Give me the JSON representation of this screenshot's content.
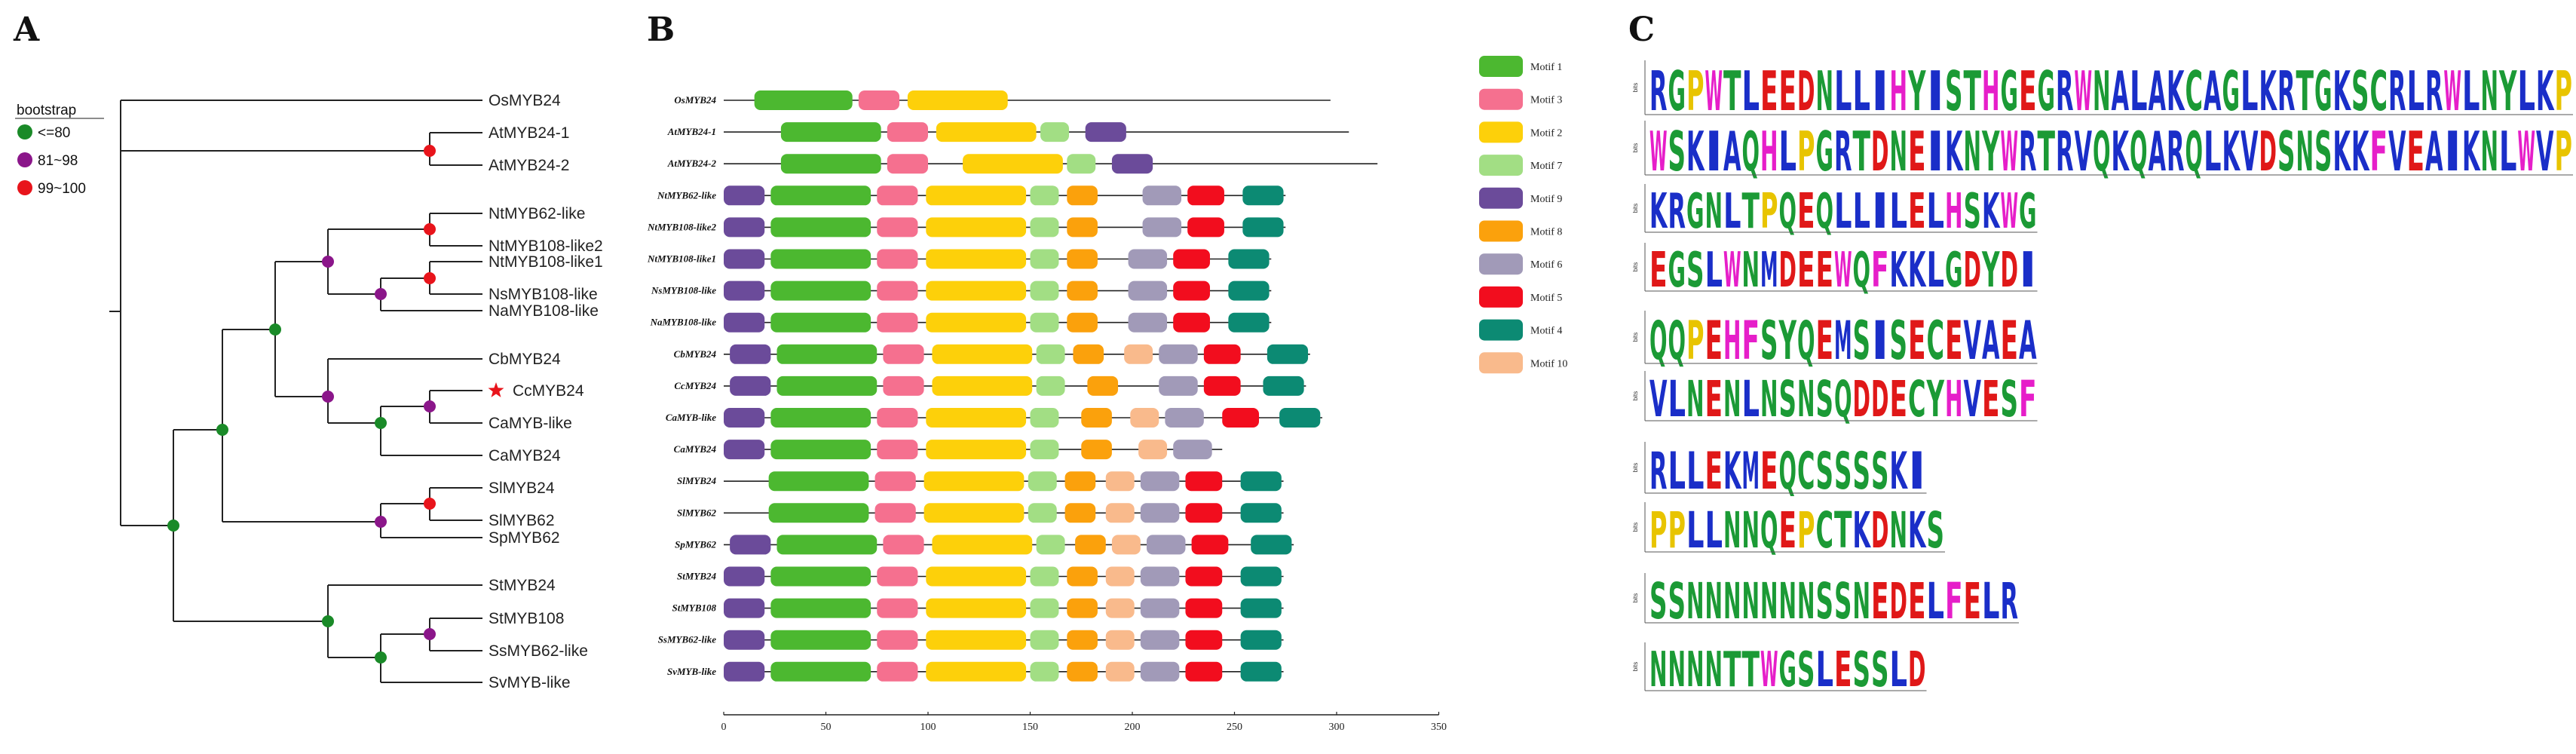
{
  "panels": {
    "a": "A",
    "b": "B",
    "c": "C"
  },
  "legend": {
    "title": "bootstrap",
    "items": [
      {
        "label": "<=80",
        "color": "#1a8a28"
      },
      {
        "label": "81~98",
        "color": "#8b168a"
      },
      {
        "label": "99~100",
        "color": "#e8141b"
      }
    ]
  },
  "tree": {
    "leaves": [
      "OsMYB24",
      "AtMYB24-1",
      "AtMYB24-2",
      "NtMYB62-like",
      "NtMYB108-like2",
      "NtMYB108-like1",
      "NsMYB108-like",
      "NaMYB108-like",
      "CbMYB24",
      "CcMYB24",
      "CaMYB-like",
      "CaMYB24",
      "SlMYB24",
      "SlMYB62",
      "SpMYB62",
      "StMYB24",
      "StMYB108",
      "SsMYB62-like",
      "SvMYB-like"
    ],
    "highlight": "CcMYB24",
    "highlight_color": "#e8141b",
    "star_color": "#e8141b"
  },
  "motif_legend": [
    {
      "label": "Motif 1",
      "color": "#4cb830"
    },
    {
      "label": "Motif 3",
      "color": "#f5708f"
    },
    {
      "label": "Motif 2",
      "color": "#fdd00a"
    },
    {
      "label": "Motif 7",
      "color": "#a2de84"
    },
    {
      "label": "Motif 9",
      "color": "#6b4b9a"
    },
    {
      "label": "Motif 8",
      "color": "#fba10c"
    },
    {
      "label": "Motif 6",
      "color": "#a19ab8"
    },
    {
      "label": "Motif 5",
      "color": "#f20d1e"
    },
    {
      "label": "Motif 4",
      "color": "#0c8a73"
    },
    {
      "label": "Motif 10",
      "color": "#f9ba8c"
    }
  ],
  "axis": {
    "min": 0,
    "max": 350,
    "ticks": [
      0,
      50,
      100,
      150,
      200,
      250,
      300,
      350
    ]
  },
  "genes": [
    {
      "name": "OsMYB24",
      "len": 297,
      "m": [
        [
          1,
          15,
          63
        ],
        [
          3,
          66,
          86
        ],
        [
          2,
          90,
          139
        ]
      ]
    },
    {
      "name": "AtMYB24-1",
      "len": 306,
      "m": [
        [
          1,
          28,
          77
        ],
        [
          3,
          80,
          100
        ],
        [
          2,
          104,
          153
        ],
        [
          7,
          155,
          169
        ],
        [
          9,
          177,
          197
        ]
      ]
    },
    {
      "name": "AtMYB24-2",
      "len": 320,
      "m": [
        [
          1,
          28,
          77
        ],
        [
          3,
          80,
          100
        ],
        [
          2,
          117,
          166
        ],
        [
          7,
          168,
          182
        ],
        [
          9,
          190,
          210
        ]
      ]
    },
    {
      "name": "NtMYB62-like",
      "len": 275,
      "m": [
        [
          9,
          0,
          20
        ],
        [
          1,
          23,
          72
        ],
        [
          3,
          75,
          95
        ],
        [
          2,
          99,
          148
        ],
        [
          7,
          150,
          164
        ],
        [
          8,
          168,
          183
        ],
        [
          6,
          205,
          224
        ],
        [
          5,
          227,
          245
        ],
        [
          4,
          254,
          274
        ]
      ]
    },
    {
      "name": "NtMYB108-like2",
      "len": 275,
      "m": [
        [
          9,
          0,
          20
        ],
        [
          1,
          23,
          72
        ],
        [
          3,
          75,
          95
        ],
        [
          2,
          99,
          148
        ],
        [
          7,
          150,
          164
        ],
        [
          8,
          168,
          183
        ],
        [
          6,
          205,
          224
        ],
        [
          5,
          227,
          245
        ],
        [
          4,
          254,
          274
        ]
      ]
    },
    {
      "name": "NtMYB108-like1",
      "len": 268,
      "m": [
        [
          9,
          0,
          20
        ],
        [
          1,
          23,
          72
        ],
        [
          3,
          75,
          95
        ],
        [
          2,
          99,
          148
        ],
        [
          7,
          150,
          164
        ],
        [
          8,
          168,
          183
        ],
        [
          6,
          198,
          217
        ],
        [
          5,
          220,
          238
        ],
        [
          4,
          247,
          267
        ]
      ]
    },
    {
      "name": "NsMYB108-like",
      "len": 268,
      "m": [
        [
          9,
          0,
          20
        ],
        [
          1,
          23,
          72
        ],
        [
          3,
          75,
          95
        ],
        [
          2,
          99,
          148
        ],
        [
          7,
          150,
          164
        ],
        [
          8,
          168,
          183
        ],
        [
          6,
          198,
          217
        ],
        [
          5,
          220,
          238
        ],
        [
          4,
          247,
          267
        ]
      ]
    },
    {
      "name": "NaMYB108-like",
      "len": 268,
      "m": [
        [
          9,
          0,
          20
        ],
        [
          1,
          23,
          72
        ],
        [
          3,
          75,
          95
        ],
        [
          2,
          99,
          148
        ],
        [
          7,
          150,
          164
        ],
        [
          8,
          168,
          183
        ],
        [
          6,
          198,
          217
        ],
        [
          5,
          220,
          238
        ],
        [
          4,
          247,
          267
        ]
      ]
    },
    {
      "name": "CbMYB24",
      "len": 287,
      "m": [
        [
          9,
          3,
          23
        ],
        [
          1,
          26,
          75
        ],
        [
          3,
          78,
          98
        ],
        [
          2,
          102,
          151
        ],
        [
          7,
          153,
          167
        ],
        [
          8,
          171,
          186
        ],
        [
          10,
          196,
          210
        ],
        [
          6,
          213,
          232
        ],
        [
          5,
          235,
          253
        ],
        [
          4,
          266,
          286
        ]
      ]
    },
    {
      "name": "CcMYB24",
      "len": 285,
      "m": [
        [
          9,
          3,
          23
        ],
        [
          1,
          26,
          75
        ],
        [
          3,
          78,
          98
        ],
        [
          2,
          102,
          151
        ],
        [
          7,
          153,
          167
        ],
        [
          8,
          178,
          193
        ],
        [
          6,
          213,
          232
        ],
        [
          5,
          235,
          253
        ],
        [
          4,
          264,
          284
        ]
      ]
    },
    {
      "name": "CaMYB-like",
      "len": 293,
      "m": [
        [
          9,
          0,
          20
        ],
        [
          1,
          23,
          72
        ],
        [
          3,
          75,
          95
        ],
        [
          2,
          99,
          148
        ],
        [
          7,
          150,
          164
        ],
        [
          8,
          175,
          190
        ],
        [
          10,
          199,
          213
        ],
        [
          6,
          216,
          235
        ],
        [
          5,
          244,
          262
        ],
        [
          4,
          272,
          292
        ]
      ]
    },
    {
      "name": "CaMYB24",
      "len": 244,
      "m": [
        [
          9,
          0,
          20
        ],
        [
          1,
          23,
          72
        ],
        [
          3,
          75,
          95
        ],
        [
          2,
          99,
          148
        ],
        [
          7,
          150,
          164
        ],
        [
          8,
          175,
          190
        ],
        [
          10,
          203,
          217
        ],
        [
          6,
          220,
          239
        ]
      ]
    },
    {
      "name": "SlMYB24",
      "len": 274,
      "m": [
        [
          1,
          22,
          71
        ],
        [
          3,
          74,
          94
        ],
        [
          2,
          98,
          147
        ],
        [
          7,
          149,
          163
        ],
        [
          8,
          167,
          182
        ],
        [
          10,
          187,
          201
        ],
        [
          6,
          204,
          223
        ],
        [
          5,
          226,
          244
        ],
        [
          4,
          253,
          273
        ]
      ]
    },
    {
      "name": "SlMYB62",
      "len": 274,
      "m": [
        [
          1,
          22,
          71
        ],
        [
          3,
          74,
          94
        ],
        [
          2,
          98,
          147
        ],
        [
          7,
          149,
          163
        ],
        [
          8,
          167,
          182
        ],
        [
          10,
          187,
          201
        ],
        [
          6,
          204,
          223
        ],
        [
          5,
          226,
          244
        ],
        [
          4,
          253,
          273
        ]
      ]
    },
    {
      "name": "SpMYB62",
      "len": 279,
      "m": [
        [
          9,
          3,
          23
        ],
        [
          1,
          26,
          75
        ],
        [
          3,
          78,
          98
        ],
        [
          2,
          102,
          151
        ],
        [
          7,
          153,
          167
        ],
        [
          8,
          172,
          187
        ],
        [
          10,
          190,
          204
        ],
        [
          6,
          207,
          226
        ],
        [
          5,
          229,
          247
        ],
        [
          4,
          258,
          278
        ]
      ]
    },
    {
      "name": "StMYB24",
      "len": 274,
      "m": [
        [
          9,
          0,
          20
        ],
        [
          1,
          23,
          72
        ],
        [
          3,
          75,
          95
        ],
        [
          2,
          99,
          148
        ],
        [
          7,
          150,
          164
        ],
        [
          8,
          168,
          183
        ],
        [
          10,
          187,
          201
        ],
        [
          6,
          204,
          223
        ],
        [
          5,
          226,
          244
        ],
        [
          4,
          253,
          273
        ]
      ]
    },
    {
      "name": "StMYB108",
      "len": 274,
      "m": [
        [
          9,
          0,
          20
        ],
        [
          1,
          23,
          72
        ],
        [
          3,
          75,
          95
        ],
        [
          2,
          99,
          148
        ],
        [
          7,
          150,
          164
        ],
        [
          8,
          168,
          183
        ],
        [
          10,
          187,
          201
        ],
        [
          6,
          204,
          223
        ],
        [
          5,
          226,
          244
        ],
        [
          4,
          253,
          273
        ]
      ]
    },
    {
      "name": "SsMYB62-like",
      "len": 274,
      "m": [
        [
          9,
          0,
          20
        ],
        [
          1,
          23,
          72
        ],
        [
          3,
          75,
          95
        ],
        [
          2,
          99,
          148
        ],
        [
          7,
          150,
          164
        ],
        [
          8,
          168,
          183
        ],
        [
          10,
          187,
          201
        ],
        [
          6,
          204,
          223
        ],
        [
          5,
          226,
          244
        ],
        [
          4,
          253,
          273
        ]
      ]
    },
    {
      "name": "SvMYB-like",
      "len": 274,
      "m": [
        [
          9,
          0,
          20
        ],
        [
          1,
          23,
          72
        ],
        [
          3,
          75,
          95
        ],
        [
          2,
          99,
          148
        ],
        [
          7,
          150,
          164
        ],
        [
          8,
          168,
          183
        ],
        [
          10,
          187,
          201
        ],
        [
          6,
          204,
          223
        ],
        [
          5,
          226,
          244
        ],
        [
          4,
          253,
          273
        ]
      ]
    }
  ],
  "logos": {
    "ylabel": "bits",
    "rows": [
      "RGPWTLEEDNLLIHYISTHGEGRWNALAKCAGLKRTGKSCRLRWLNYLKP",
      "WSKIAQHLPGRTDNEIKNYWRTRVQKQARQLKVDSNSKKFVEAIKNLWVP",
      "KRGNLTPQEQLLILELHSKWG",
      "EGSLWNMDEEWQFKKLGDYDI",
      "QQPEHFSYQEMSISECEVAEA",
      "VLNENLNSNSQDDECYHVESF",
      "RLLEKMEQCSSSSKI",
      "PPLLNNQEPCTKDNKS",
      "SSNNNNNNNSSNEDELFELR",
      "NNNNTTWGSLESSLD"
    ]
  }
}
